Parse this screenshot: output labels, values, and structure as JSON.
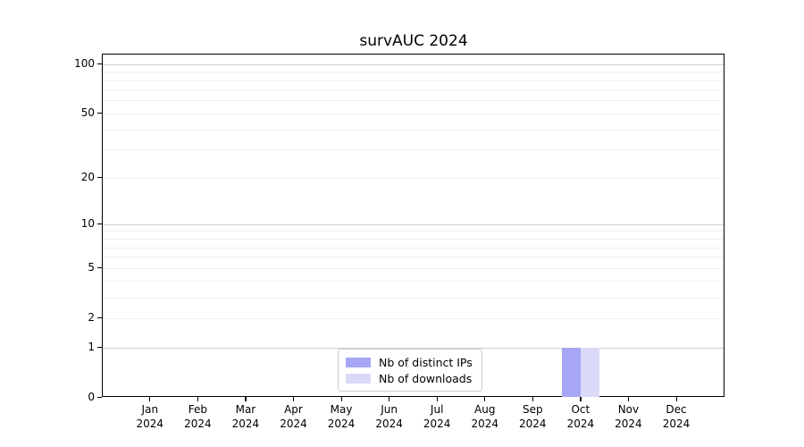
{
  "title": "survAUC 2024",
  "legend": {
    "items": [
      {
        "label": "Nb of distinct IPs",
        "color": "#a6a6f5"
      },
      {
        "label": "Nb of downloads",
        "color": "#dadaf8"
      }
    ]
  },
  "chart_data": {
    "type": "bar",
    "title": "survAUC 2024",
    "xlabel": "",
    "ylabel": "",
    "categories": [
      "Jan 2024",
      "Feb 2024",
      "Mar 2024",
      "Apr 2024",
      "May 2024",
      "Jun 2024",
      "Jul 2024",
      "Aug 2024",
      "Sep 2024",
      "Oct 2024",
      "Nov 2024",
      "Dec 2024"
    ],
    "series": [
      {
        "name": "Nb of distinct IPs",
        "color": "#a6a6f5",
        "values": [
          0,
          0,
          0,
          0,
          0,
          0,
          0,
          0,
          0,
          1,
          0,
          0
        ]
      },
      {
        "name": "Nb of downloads",
        "color": "#dadaf8",
        "values": [
          0,
          0,
          0,
          0,
          0,
          0,
          0,
          0,
          0,
          1,
          0,
          0
        ]
      }
    ],
    "y_scale": "log1p",
    "ylim": [
      0,
      115
    ],
    "y_ticks": [
      0,
      1,
      2,
      5,
      10,
      20,
      50,
      100
    ],
    "y_major_gridlines": [
      1,
      10,
      100
    ],
    "y_minor_gridlines": [
      2,
      3,
      4,
      5,
      6,
      7,
      8,
      9,
      20,
      30,
      40,
      50,
      60,
      70,
      80,
      90
    ],
    "grid": "horizontal",
    "legend_position": "bottom-center-inside"
  }
}
